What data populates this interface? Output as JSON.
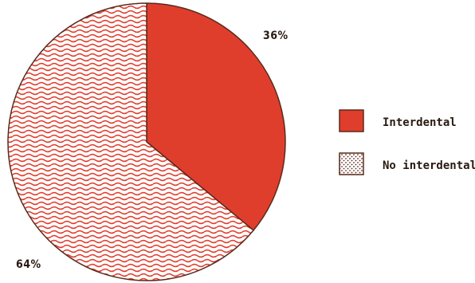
{
  "chart_data": {
    "type": "pie",
    "title": "",
    "slices": [
      {
        "name": "Interdental",
        "value": 36,
        "label": "36%",
        "color": "#e03e2d",
        "fill": "solid"
      },
      {
        "name": "No interdental",
        "value": 64,
        "label": "64%",
        "color": "#e03e2d",
        "fill": "pattern"
      }
    ],
    "legend": {
      "position": "right",
      "entries": [
        "Interdental",
        "No interdental"
      ]
    },
    "stroke_color": "#5a2a1c"
  }
}
